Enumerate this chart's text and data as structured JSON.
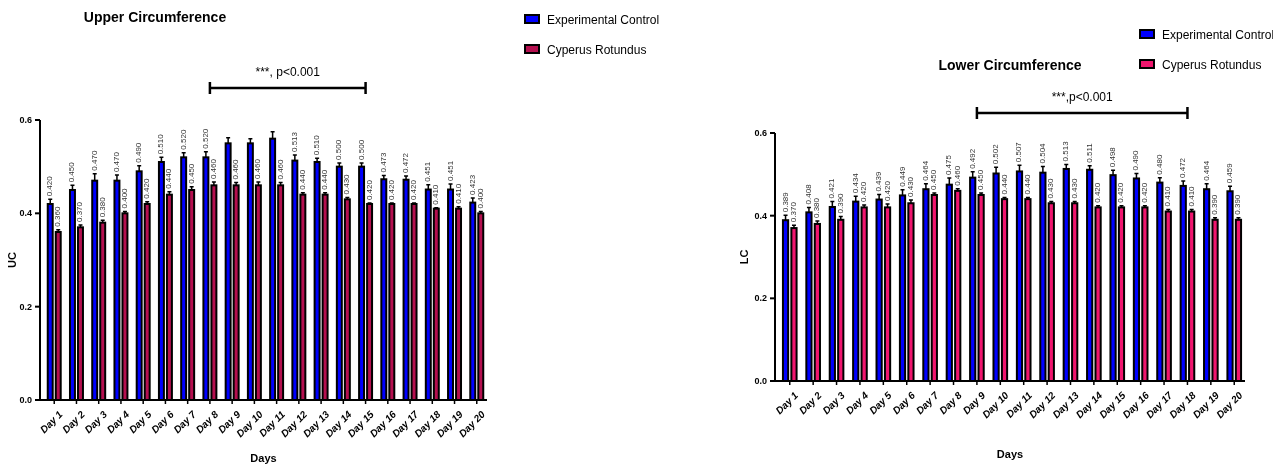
{
  "chart_data": [
    {
      "type": "bar",
      "title": "Upper Circumference",
      "xlabel": "Days",
      "ylabel": "UC",
      "categories": [
        "Day 1",
        "Day 2",
        "Day 3",
        "Day 4",
        "Day 5",
        "Day 6",
        "Day 7",
        "Day 8",
        "Day 9",
        "Day 10",
        "Day 11",
        "Day 12",
        "Day 13",
        "Day 14",
        "Day 15",
        "Day 16",
        "Day 17",
        "Day 18",
        "Day 19",
        "Day 20"
      ],
      "series": [
        {
          "name": "Experimental Control",
          "color": "#0000ff",
          "values": [
            0.42,
            0.45,
            0.47,
            0.47,
            0.49,
            0.51,
            0.52,
            0.52,
            0.55,
            0.55,
            0.56,
            0.513,
            0.51,
            0.5,
            0.5,
            0.473,
            0.472,
            0.451,
            0.451,
            0.423
          ],
          "errors": [
            0.01,
            0.01,
            0.015,
            0.012,
            0.012,
            0.01,
            0.01,
            0.012,
            0.012,
            0.01,
            0.015,
            0.012,
            0.008,
            0.008,
            0.008,
            0.008,
            0.008,
            0.01,
            0.012,
            0.01
          ],
          "value_labels": [
            "0.420",
            "0.450",
            "0.470",
            "0.470",
            "0.490",
            "0.510",
            "0.520",
            "0.520",
            null,
            null,
            null,
            "0.513",
            "0.510",
            "0.500",
            "0.500",
            "0.473",
            "0.472",
            "0.451",
            "0.451",
            "0.423"
          ]
        },
        {
          "name": "Cyperus Rotundus",
          "color": "#b5104f",
          "values": [
            0.36,
            0.37,
            0.38,
            0.4,
            0.42,
            0.44,
            0.45,
            0.46,
            0.46,
            0.46,
            0.46,
            0.44,
            0.44,
            0.43,
            0.42,
            0.42,
            0.42,
            0.41,
            0.41,
            0.4
          ],
          "errors": [
            0.005,
            0.005,
            0.005,
            0.004,
            0.005,
            0.006,
            0.007,
            0.007,
            0.006,
            0.007,
            0.006,
            0.004,
            0.004,
            0.004,
            0.002,
            0.002,
            0.002,
            0.002,
            0.004,
            0.004
          ],
          "value_labels": [
            "0.360",
            "0.370",
            "0.380",
            "0.400",
            "0.420",
            "0.440",
            "0.450",
            "0.460",
            "0.460",
            "0.460",
            "0.460",
            "0.440",
            "0.440",
            "0.430",
            "0.420",
            "0.420",
            "0.420",
            "0.410",
            "0.410",
            "0.400"
          ]
        }
      ],
      "ylim": [
        0,
        0.6
      ],
      "yticks": [
        {
          "value": 0,
          "label": "0.0"
        },
        0.2,
        0.4,
        0.6
      ],
      "legend": "top right",
      "annotations": [
        "***, p<0.001"
      ]
    },
    {
      "type": "bar",
      "title": "Lower Circumference",
      "xlabel": "Days",
      "ylabel": "LC",
      "categories": [
        "Day 1",
        "Day 2",
        "Day 3",
        "Day 4",
        "Day 5",
        "Day 6",
        "Day 7",
        "Day 8",
        "Day 9",
        "Day 10",
        "Day 11",
        "Day 12",
        "Day 13",
        "Day 14",
        "Day 15",
        "Day 16",
        "Day 17",
        "Day 18",
        "Day 19",
        "Day 20"
      ],
      "series": [
        {
          "name": "Experimental Control",
          "color": "#0000ff",
          "values": [
            0.389,
            0.408,
            0.421,
            0.434,
            0.439,
            0.449,
            0.464,
            0.475,
            0.492,
            0.502,
            0.507,
            0.504,
            0.513,
            0.511,
            0.498,
            0.49,
            0.48,
            0.472,
            0.464,
            0.459
          ],
          "errors": [
            0.012,
            0.012,
            0.013,
            0.013,
            0.012,
            0.014,
            0.013,
            0.016,
            0.014,
            0.015,
            0.015,
            0.015,
            0.011,
            0.01,
            0.012,
            0.012,
            0.012,
            0.012,
            0.013,
            0.012
          ],
          "value_labels": [
            "0.389",
            "0.408",
            "0.421",
            "0.434",
            "0.439",
            "0.449",
            "0.464",
            "0.475",
            "0.492",
            "0.502",
            "0.507",
            "0.504",
            "0.513",
            "0.511",
            "0.498",
            "0.490",
            "0.480",
            "0.472",
            "0.464",
            "0.459"
          ]
        },
        {
          "name": "Cyperus Rotundus",
          "color": "#f0166e",
          "values": [
            0.37,
            0.38,
            0.39,
            0.42,
            0.42,
            0.43,
            0.45,
            0.46,
            0.45,
            0.44,
            0.44,
            0.43,
            0.43,
            0.42,
            0.42,
            0.42,
            0.41,
            0.41,
            0.39,
            0.39
          ],
          "errors": [
            0.007,
            0.007,
            0.008,
            0.006,
            0.008,
            0.008,
            0.005,
            0.005,
            0.005,
            0.004,
            0.004,
            0.004,
            0.004,
            0.004,
            0.004,
            0.004,
            0.005,
            0.005,
            0.005,
            0.005
          ],
          "value_labels": [
            "0.370",
            "0.380",
            "0.390",
            "0.420",
            "0.420",
            "0.430",
            "0.450",
            "0.460",
            "0.450",
            "0.440",
            "0.440",
            "0.430",
            "0.430",
            "0.420",
            "0.420",
            "0.420",
            "0.410",
            "0.410",
            "0.390",
            "0.390"
          ]
        }
      ],
      "ylim": [
        0,
        0.6
      ],
      "yticks": [
        {
          "value": 0,
          "label": "0.0"
        },
        0.2,
        0.4,
        0.6
      ],
      "legend": "top right",
      "annotations": [
        "***,p<0.001"
      ]
    }
  ]
}
